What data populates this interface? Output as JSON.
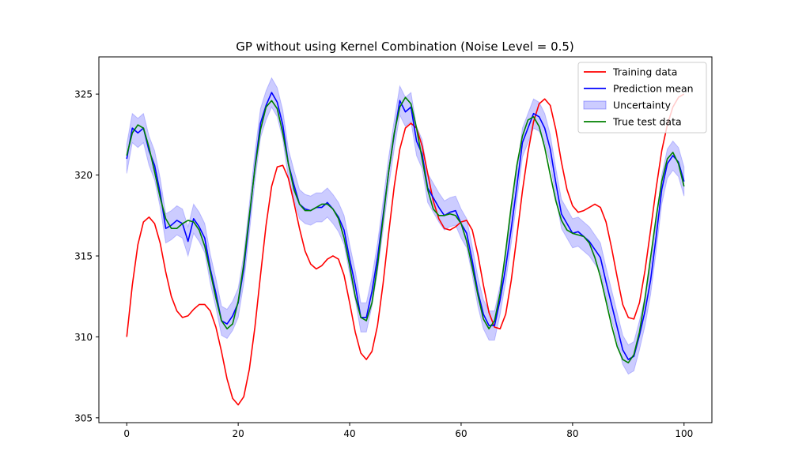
{
  "chart_data": {
    "type": "line",
    "title": "GP without using Kernel Combination (Noise Level = 0.5)",
    "xlabel": "",
    "ylabel": "",
    "xlim": [
      -5,
      105
    ],
    "ylim": [
      304.7,
      327.3
    ],
    "xticks": [
      0,
      20,
      40,
      60,
      80,
      100
    ],
    "yticks": [
      305,
      310,
      315,
      320,
      325
    ],
    "grid": false,
    "legend_position": "top-right",
    "legend": [
      "Training data",
      "Prediction mean",
      "Uncertainty",
      "True test data"
    ],
    "colors": {
      "training": "#ff0000",
      "prediction": "#0000ff",
      "uncertainty": "#0000ff",
      "true_test": "#008000"
    },
    "series": [
      {
        "name": "Training data",
        "x": [
          0,
          1,
          2,
          3,
          4,
          5,
          6,
          7,
          8,
          9,
          10,
          11,
          12,
          13,
          14,
          15,
          16,
          17,
          18,
          19,
          20,
          21,
          22,
          23,
          24,
          25,
          26,
          27,
          28,
          29,
          30,
          31,
          32,
          33,
          34,
          35,
          36,
          37,
          38,
          39,
          40,
          41,
          42,
          43,
          44,
          45,
          46,
          47,
          48,
          49,
          50,
          51,
          52,
          53,
          54,
          55,
          56,
          57,
          58,
          59,
          60,
          61,
          62,
          63,
          64,
          65,
          66,
          67,
          68,
          69,
          70,
          71,
          72,
          73,
          74,
          75,
          76,
          77,
          78,
          79,
          80,
          81,
          82,
          83,
          84,
          85,
          86,
          87,
          88,
          89,
          90,
          91,
          92,
          93,
          94,
          95,
          96,
          97,
          98,
          99,
          100
        ],
        "y": [
          310.0,
          313.2,
          315.7,
          317.1,
          317.4,
          317.0,
          315.8,
          314.0,
          312.5,
          311.6,
          311.2,
          311.3,
          311.7,
          312.0,
          312.0,
          311.6,
          310.6,
          309.1,
          307.4,
          306.2,
          305.8,
          306.3,
          308.0,
          310.6,
          313.8,
          316.9,
          319.3,
          320.5,
          320.6,
          319.8,
          318.3,
          316.7,
          315.3,
          314.5,
          314.2,
          314.4,
          314.8,
          315.0,
          314.8,
          313.8,
          312.1,
          310.3,
          309.0,
          308.6,
          309.1,
          310.7,
          313.3,
          316.4,
          319.3,
          321.6,
          322.9,
          323.2,
          322.9,
          321.8,
          320.1,
          318.4,
          317.3,
          316.7,
          316.6,
          316.8,
          317.1,
          317.2,
          316.6,
          315.1,
          313.2,
          311.5,
          310.6,
          310.5,
          311.4,
          313.5,
          316.2,
          319.0,
          321.4,
          323.3,
          324.4,
          324.7,
          324.3,
          322.8,
          320.8,
          319.1,
          318.1,
          317.7,
          317.8,
          318.0,
          318.2,
          318.0,
          317.1,
          315.5,
          313.7,
          312.0,
          311.2,
          311.1,
          312.1,
          314.1,
          316.6,
          319.2,
          321.5,
          323.1,
          324.2,
          324.8,
          325.0
        ]
      },
      {
        "name": "Prediction mean",
        "x": [
          0,
          1,
          2,
          3,
          4,
          5,
          6,
          7,
          8,
          9,
          10,
          11,
          12,
          13,
          14,
          15,
          16,
          17,
          18,
          19,
          20,
          21,
          22,
          23,
          24,
          25,
          26,
          27,
          28,
          29,
          30,
          31,
          32,
          33,
          34,
          35,
          36,
          37,
          38,
          39,
          40,
          41,
          42,
          43,
          44,
          45,
          46,
          47,
          48,
          49,
          50,
          51,
          52,
          53,
          54,
          55,
          56,
          57,
          58,
          59,
          60,
          61,
          62,
          63,
          64,
          65,
          66,
          67,
          68,
          69,
          70,
          71,
          72,
          73,
          74,
          75,
          76,
          77,
          78,
          79,
          80,
          81,
          82,
          83,
          84,
          85,
          86,
          87,
          88,
          89,
          90,
          91,
          92,
          93,
          94,
          95,
          96,
          97,
          98,
          99,
          100
        ],
        "y": [
          321.0,
          322.9,
          322.6,
          322.9,
          321.5,
          320.6,
          318.9,
          316.7,
          316.9,
          317.2,
          317.0,
          315.9,
          317.3,
          316.8,
          316.1,
          314.2,
          312.7,
          311.0,
          310.8,
          311.3,
          312.1,
          314.2,
          317.3,
          320.5,
          323.2,
          324.3,
          325.1,
          324.5,
          323.1,
          320.7,
          319.4,
          318.2,
          317.9,
          317.8,
          318.0,
          318.0,
          318.3,
          317.9,
          317.4,
          316.6,
          314.8,
          313.2,
          311.2,
          311.2,
          312.8,
          314.9,
          317.5,
          320.2,
          322.5,
          324.6,
          323.9,
          324.2,
          322.1,
          321.3,
          319.2,
          318.6,
          318.0,
          317.5,
          317.7,
          317.8,
          317.0,
          316.4,
          314.7,
          312.8,
          311.4,
          310.7,
          310.7,
          312.3,
          314.3,
          316.7,
          319.3,
          322.0,
          322.9,
          323.8,
          323.6,
          322.9,
          321.6,
          319.5,
          317.6,
          317.0,
          316.4,
          316.5,
          316.2,
          315.9,
          315.4,
          314.9,
          313.4,
          312.0,
          310.6,
          309.2,
          308.6,
          308.8,
          310.1,
          311.6,
          313.5,
          316.2,
          319.1,
          320.7,
          321.2,
          320.8,
          319.6
        ]
      },
      {
        "name": "True test data",
        "x": [
          0,
          1,
          2,
          3,
          4,
          5,
          6,
          7,
          8,
          9,
          10,
          11,
          12,
          13,
          14,
          15,
          16,
          17,
          18,
          19,
          20,
          21,
          22,
          23,
          24,
          25,
          26,
          27,
          28,
          29,
          30,
          31,
          32,
          33,
          34,
          35,
          36,
          37,
          38,
          39,
          40,
          41,
          42,
          43,
          44,
          45,
          46,
          47,
          48,
          49,
          50,
          51,
          52,
          53,
          54,
          55,
          56,
          57,
          58,
          59,
          60,
          61,
          62,
          63,
          64,
          65,
          66,
          67,
          68,
          69,
          70,
          71,
          72,
          73,
          74,
          75,
          76,
          77,
          78,
          79,
          80,
          81,
          82,
          83,
          84,
          85,
          86,
          87,
          88,
          89,
          90,
          91,
          92,
          93,
          94,
          95,
          96,
          97,
          98,
          99,
          100
        ],
        "y": [
          321.2,
          322.6,
          323.1,
          322.9,
          321.7,
          320.2,
          318.6,
          317.3,
          316.7,
          316.7,
          317.0,
          317.2,
          317.1,
          316.6,
          315.6,
          314.0,
          312.4,
          311.0,
          310.5,
          310.8,
          312.2,
          314.5,
          317.5,
          320.4,
          322.8,
          324.2,
          324.6,
          324.1,
          322.6,
          320.7,
          319.1,
          318.2,
          317.8,
          317.8,
          318.0,
          318.2,
          318.2,
          317.9,
          317.3,
          316.1,
          314.4,
          312.5,
          311.2,
          311.0,
          312.1,
          314.4,
          317.3,
          320.2,
          322.6,
          324.2,
          324.8,
          324.4,
          322.9,
          321.0,
          319.1,
          317.9,
          317.5,
          317.5,
          317.6,
          317.5,
          317.0,
          315.9,
          314.3,
          312.6,
          311.1,
          310.5,
          311.0,
          312.7,
          315.3,
          318.1,
          320.6,
          322.4,
          323.4,
          323.6,
          323.0,
          321.7,
          320.0,
          318.4,
          317.2,
          316.6,
          316.4,
          316.3,
          316.2,
          315.8,
          314.9,
          313.7,
          312.2,
          310.7,
          309.4,
          308.6,
          308.4,
          308.9,
          310.3,
          312.4,
          314.9,
          317.4,
          319.6,
          321.0,
          321.4,
          320.7,
          319.3
        ]
      }
    ],
    "uncertainty_halfwidth": 0.9
  }
}
